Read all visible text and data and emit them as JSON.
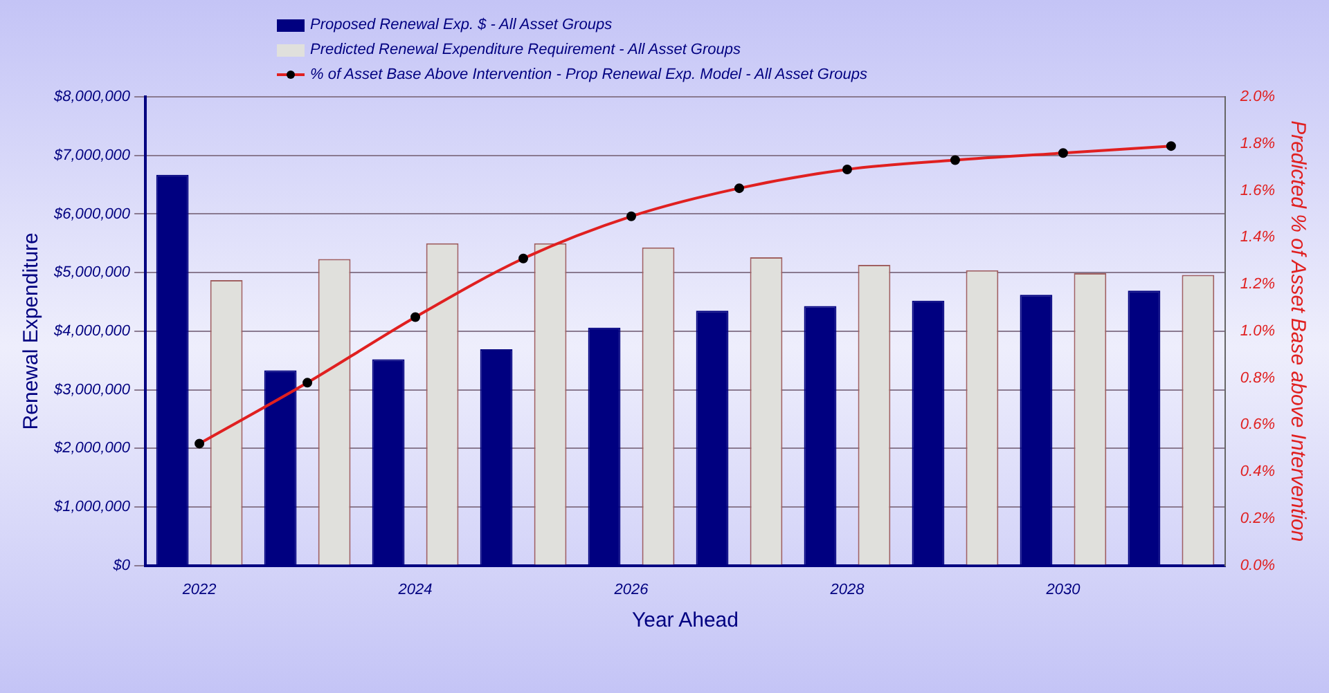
{
  "chart_data": {
    "type": "bar",
    "xlabel": "Year Ahead",
    "ylabel": "Renewal Expenditure",
    "y2label": "Predicted % of Asset Base above Intervention",
    "categories": [
      "2022",
      null,
      "2024",
      null,
      "2026",
      null,
      "2028",
      null,
      "2030",
      null
    ],
    "series": [
      {
        "name": "Proposed Renewal Exp. $ -  All Asset Groups",
        "color": "#000080",
        "values": [
          6670000,
          3330000,
          3520000,
          3690000,
          4060000,
          4350000,
          4430000,
          4520000,
          4620000,
          4690000
        ]
      },
      {
        "name": "Predicted Renewal Expenditure Requirement -  All Asset Groups",
        "color": "#e0e0dc",
        "values": [
          4870000,
          5230000,
          5500000,
          5500000,
          5430000,
          5260000,
          5130000,
          5040000,
          4990000,
          4960000
        ]
      },
      {
        "name": "% of Asset Base Above Intervention - Prop Renewal Exp. Model -  All Asset Groups",
        "type": "line",
        "axis": "y2",
        "color": "#e02020",
        "marker": "circle",
        "line_style": "solid",
        "values": [
          0.52,
          0.78,
          1.06,
          1.31,
          1.49,
          1.61,
          1.69,
          1.73,
          1.76,
          1.79
        ]
      }
    ],
    "ylim": [
      0,
      8000000
    ],
    "yticks": [
      {
        "value": 0,
        "label": "$0"
      },
      {
        "value": 1000000,
        "label": "$1,000,000"
      },
      {
        "value": 2000000,
        "label": "$2,000,000"
      },
      {
        "value": 3000000,
        "label": "$3,000,000"
      },
      {
        "value": 4000000,
        "label": "$4,000,000"
      },
      {
        "value": 5000000,
        "label": "$5,000,000"
      },
      {
        "value": 6000000,
        "label": "$6,000,000"
      },
      {
        "value": 7000000,
        "label": "$7,000,000"
      },
      {
        "value": 8000000,
        "label": "$8,000,000"
      }
    ],
    "y2lim": [
      0,
      2
    ],
    "y2ticks": [
      {
        "value": 0,
        "label": "0.0%"
      },
      {
        "value": 0.2,
        "label": "0.2%"
      },
      {
        "value": 0.4,
        "label": "0.4%"
      },
      {
        "value": 0.6,
        "label": "0.6%"
      },
      {
        "value": 0.8,
        "label": "0.8%"
      },
      {
        "value": 1,
        "label": "1.0%"
      },
      {
        "value": 1.2,
        "label": "1.2%"
      },
      {
        "value": 1.4,
        "label": "1.4%"
      },
      {
        "value": 1.6,
        "label": "1.6%"
      },
      {
        "value": 1.8,
        "label": "1.8%"
      },
      {
        "value": 2,
        "label": "2.0%"
      }
    ],
    "grid": "y",
    "legend": "top"
  }
}
